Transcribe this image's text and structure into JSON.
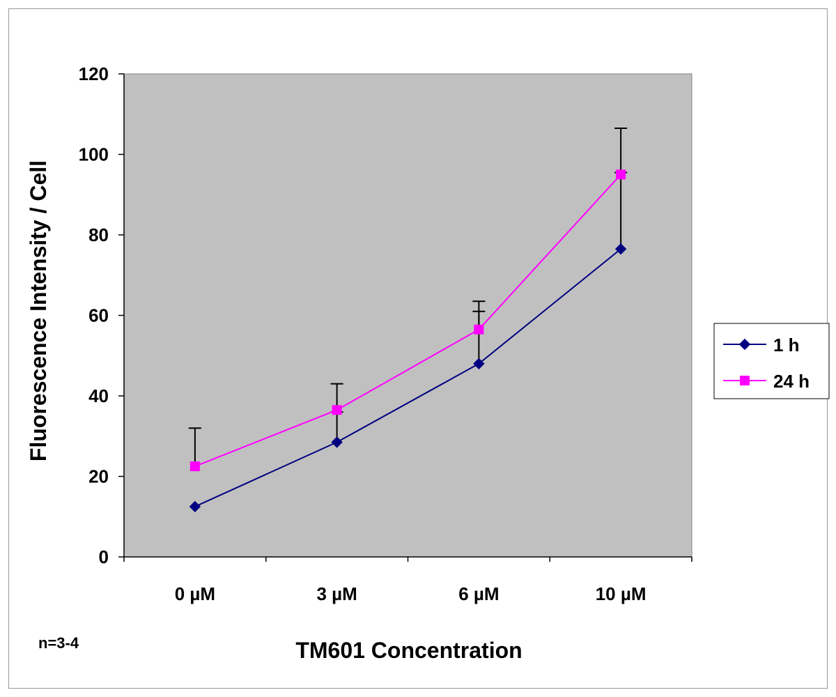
{
  "chart_data": {
    "type": "line",
    "title": "",
    "xlabel": "TM601 Concentration",
    "ylabel": "Fluorescence Intensity / Cell",
    "categories": [
      "0 µM",
      "3 µM",
      "6 µM",
      "10 µM"
    ],
    "ylim": [
      0,
      120
    ],
    "yticks": [
      0,
      20,
      40,
      60,
      80,
      100,
      120
    ],
    "grid": false,
    "legend_position": "right",
    "series": [
      {
        "name": "1 h",
        "color": "#000080",
        "marker": "diamond",
        "values": [
          12.5,
          28.5,
          48,
          76.5
        ],
        "error_plus": [
          0,
          7.5,
          13,
          19
        ]
      },
      {
        "name": "24 h",
        "color": "#ff00ff",
        "marker": "square",
        "values": [
          22.5,
          36.5,
          56.5,
          95
        ],
        "error_plus": [
          9.5,
          6.5,
          7,
          11.5
        ]
      }
    ],
    "footnote": "n=3-4"
  }
}
